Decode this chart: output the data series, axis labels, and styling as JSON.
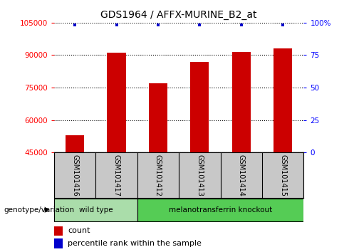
{
  "title": "GDS1964 / AFFX-MURINE_B2_at",
  "samples": [
    "GSM101416",
    "GSM101417",
    "GSM101412",
    "GSM101413",
    "GSM101414",
    "GSM101415"
  ],
  "counts": [
    53000,
    91000,
    77000,
    87000,
    91500,
    93000
  ],
  "ylim_left": [
    45000,
    105000
  ],
  "ylim_right": [
    0,
    100
  ],
  "yticks_left": [
    45000,
    60000,
    75000,
    90000,
    105000
  ],
  "yticks_right": [
    0,
    25,
    50,
    75,
    100
  ],
  "bar_color": "#cc0000",
  "dot_color": "#0000cc",
  "bar_width": 0.45,
  "groups_def": [
    {
      "label": "wild type",
      "start": 0,
      "end": 1,
      "color": "#aaddaa"
    },
    {
      "label": "melanotransferrin knockout",
      "start": 2,
      "end": 5,
      "color": "#55cc55"
    }
  ],
  "group_row_label": "genotype/variation",
  "legend_count_label": "count",
  "legend_percentile_label": "percentile rank within the sample",
  "background_color": "#ffffff",
  "tick_label_area_color": "#c8c8c8"
}
